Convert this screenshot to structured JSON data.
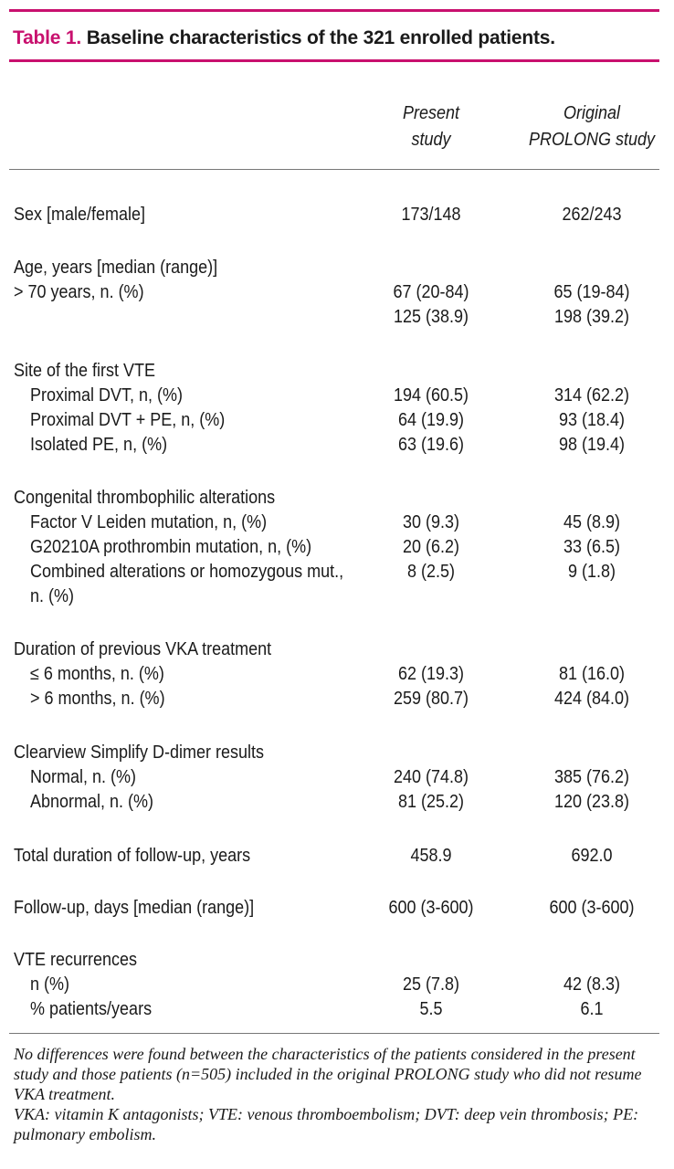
{
  "title": {
    "label": "Table 1.",
    "text": "Baseline characteristics of the 321 enrolled patients."
  },
  "columns": {
    "present": [
      "Present",
      "study"
    ],
    "original": [
      "Original",
      "PROLONG study"
    ]
  },
  "sections": [
    {
      "rows": [
        {
          "label": "Sex [male/female]",
          "present": "173/148",
          "original": "262/243"
        }
      ]
    },
    {
      "rows": [
        {
          "label": "Age, years [median (range)]",
          "present": "",
          "original": ""
        },
        {
          "label": "> 70 years, n. (%)",
          "present": "67 (20-84)",
          "original": "65 (19-84)"
        },
        {
          "label": "",
          "present": "125 (38.9)",
          "original": "198 (39.2)"
        }
      ]
    },
    {
      "rows": [
        {
          "label": "Site of the first VTE",
          "present": "",
          "original": ""
        },
        {
          "label": "Proximal DVT, n, (%)",
          "indent": true,
          "present": "194 (60.5)",
          "original": "314 (62.2)"
        },
        {
          "label": "Proximal DVT + PE, n, (%)",
          "indent": true,
          "present": "64 (19.9)",
          "original": "93 (18.4)"
        },
        {
          "label": "Isolated PE, n, (%)",
          "indent": true,
          "present": "63 (19.6)",
          "original": "98 (19.4)"
        }
      ]
    },
    {
      "rows": [
        {
          "label": "Congenital thrombophilic alterations",
          "present": "",
          "original": ""
        },
        {
          "label": "Factor V Leiden mutation, n, (%)",
          "indent": true,
          "present": "30 (9.3)",
          "original": "45 (8.9)"
        },
        {
          "label": "G20210A prothrombin mutation, n, (%)",
          "indent": true,
          "present": "20 (6.2)",
          "original": "33 (6.5)"
        },
        {
          "label": "Combined alterations or homozygous mut.,",
          "indent": true,
          "present": "8 (2.5)",
          "original": "9 (1.8)"
        },
        {
          "label": "n. (%)",
          "indent": true,
          "present": "",
          "original": ""
        }
      ]
    },
    {
      "rows": [
        {
          "label": "Duration of previous VKA treatment",
          "present": "",
          "original": ""
        },
        {
          "label": "≤ 6 months, n. (%)",
          "indent": true,
          "present": "62 (19.3)",
          "original": "81 (16.0)"
        },
        {
          "label": "> 6 months, n. (%)",
          "indent": true,
          "present": "259 (80.7)",
          "original": "424 (84.0)"
        }
      ]
    },
    {
      "rows": [
        {
          "label": "Clearview Simplify D-dimer results",
          "present": "",
          "original": ""
        },
        {
          "label": "Normal, n. (%)",
          "indent": true,
          "present": "240 (74.8)",
          "original": "385 (76.2)"
        },
        {
          "label": "Abnormal, n. (%)",
          "indent": true,
          "present": "81 (25.2)",
          "original": "120 (23.8)"
        }
      ]
    },
    {
      "rows": [
        {
          "label": "Total duration of follow-up, years",
          "present": "458.9",
          "original": "692.0"
        }
      ]
    },
    {
      "rows": [
        {
          "label": "Follow-up, days [median (range)]",
          "present": "600 (3-600)",
          "original": "600 (3-600)"
        }
      ]
    },
    {
      "rows": [
        {
          "label": "VTE recurrences",
          "present": "",
          "original": ""
        },
        {
          "label": "n (%)",
          "indent": true,
          "present": "25 (7.8)",
          "original": "42 (8.3)"
        },
        {
          "label": "% patients/years",
          "indent": true,
          "present": "5.5",
          "original": "6.1"
        }
      ]
    }
  ],
  "footnotes": [
    "No differences were found between the characteristics of the patients considered in the present study and those patients (n=505) included in the original PROLONG study who did not resume VKA treatment.",
    "VKA: vitamin K antagonists; VTE: venous thromboembolism; DVT: deep vein thrombosis; PE: pulmonary embolism."
  ]
}
